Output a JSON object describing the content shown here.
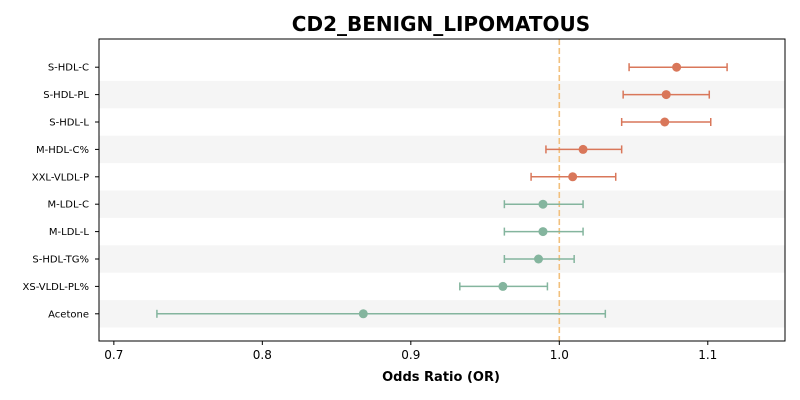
{
  "chart_data": {
    "type": "forest",
    "title": "CD2_BENIGN_LIPOMATOUS",
    "xlabel": "Odds Ratio (OR)",
    "ylabel": "",
    "xlim": [
      0.69,
      1.152
    ],
    "xticks": [
      "0.7",
      "0.8",
      "0.9",
      "1.0",
      "1.1"
    ],
    "reference_line": 1.0,
    "grid": false,
    "colors": {
      "positive": "#d9775a",
      "negative": "#84b59e",
      "reference": "#f2c07d",
      "band": "#f5f5f5"
    },
    "rows": [
      {
        "label": "S-HDL-C",
        "or": 1.079,
        "lo": 1.047,
        "hi": 1.113
      },
      {
        "label": "S-HDL-PL",
        "or": 1.072,
        "lo": 1.043,
        "hi": 1.101
      },
      {
        "label": "S-HDL-L",
        "or": 1.071,
        "lo": 1.042,
        "hi": 1.102
      },
      {
        "label": "M-HDL-C%",
        "or": 1.016,
        "lo": 0.991,
        "hi": 1.042
      },
      {
        "label": "XXL-VLDL-P",
        "or": 1.009,
        "lo": 0.981,
        "hi": 1.038
      },
      {
        "label": "M-LDL-C",
        "or": 0.989,
        "lo": 0.963,
        "hi": 1.016
      },
      {
        "label": "M-LDL-L",
        "or": 0.989,
        "lo": 0.963,
        "hi": 1.016
      },
      {
        "label": "S-HDL-TG%",
        "or": 0.986,
        "lo": 0.963,
        "hi": 1.01
      },
      {
        "label": "XS-VLDL-PL%",
        "or": 0.962,
        "lo": 0.933,
        "hi": 0.992
      },
      {
        "label": "Acetone",
        "or": 0.868,
        "lo": 0.729,
        "hi": 1.031
      }
    ]
  }
}
